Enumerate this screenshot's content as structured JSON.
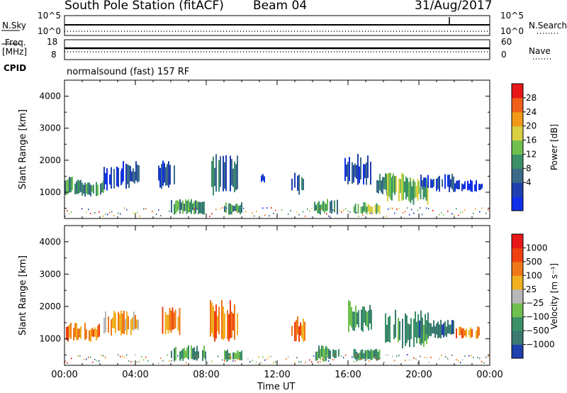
{
  "header": {
    "station": "South Pole Station (fitACF)",
    "beam": "Beam 04",
    "date": "31/Aug/2017"
  },
  "strips": {
    "nsky_label": "N.Sky",
    "nsearch_label": "N.Search",
    "nsky_ticks": [
      "10^5",
      "10^0"
    ],
    "nsearch_ticks": [
      "10^5",
      "10^0"
    ],
    "freq_label": "Freq.",
    "freq_unit": "[MHz]",
    "freq_ticks": [
      "18",
      "8"
    ],
    "nave_label": "Nave",
    "nave_ticks": [
      "60",
      "0"
    ],
    "cpid_label": "CPID",
    "cpid_text": "normalsound (fast) 157 RF"
  },
  "chart_data": [
    {
      "type": "heatmap",
      "name": "power",
      "ylabel": "Slant Range [km]",
      "ylim": [
        180,
        4500
      ],
      "yticks": [
        "4000",
        "3000",
        "2000",
        "1000"
      ],
      "xlim_hours": [
        0,
        24
      ],
      "colorbar": {
        "label": "Power [dB]",
        "ticks": [
          "28",
          "24",
          "20",
          "16",
          "12",
          "8",
          "4"
        ],
        "colors": [
          "#1030e8",
          "#2040b0",
          "#3a6a88",
          "#3c9068",
          "#70c050",
          "#d8d040",
          "#f09a18",
          "#f06018",
          "#e81818"
        ]
      },
      "patches": [
        {
          "t": [
            0.0,
            0.8
          ],
          "r": [
            900,
            1500
          ],
          "v": 3
        },
        {
          "t": [
            0.8,
            2.2
          ],
          "r": [
            850,
            1400
          ],
          "v": 3
        },
        {
          "t": [
            2.2,
            3.2
          ],
          "r": [
            1050,
            1800
          ],
          "v": 1
        },
        {
          "t": [
            3.2,
            4.2
          ],
          "r": [
            1100,
            2000
          ],
          "v": 1
        },
        {
          "t": [
            5.2,
            6.3
          ],
          "r": [
            1100,
            2000
          ],
          "v": 1
        },
        {
          "t": [
            6.0,
            8.0
          ],
          "r": [
            300,
            800
          ],
          "v": 3
        },
        {
          "t": [
            8.2,
            9.8
          ],
          "r": [
            900,
            2200
          ],
          "v": 2
        },
        {
          "t": [
            9.0,
            10.0
          ],
          "r": [
            300,
            700
          ],
          "v": 3
        },
        {
          "t": [
            11.0,
            11.4
          ],
          "r": [
            1300,
            1600
          ],
          "v": 1
        },
        {
          "t": [
            12.8,
            13.6
          ],
          "r": [
            900,
            1700
          ],
          "v": 2
        },
        {
          "t": [
            14.0,
            15.5
          ],
          "r": [
            300,
            800
          ],
          "v": 3
        },
        {
          "t": [
            15.8,
            17.3
          ],
          "r": [
            1200,
            2200
          ],
          "v": 1
        },
        {
          "t": [
            16.3,
            17.8
          ],
          "r": [
            300,
            700
          ],
          "v": 4
        },
        {
          "t": [
            17.6,
            18.5
          ],
          "r": [
            900,
            1600
          ],
          "v": 2
        },
        {
          "t": [
            18.2,
            20.0
          ],
          "r": [
            700,
            1700
          ],
          "v": 4
        },
        {
          "t": [
            19.5,
            20.5
          ],
          "r": [
            600,
            1500
          ],
          "v": 4
        },
        {
          "t": [
            20.0,
            22.0
          ],
          "r": [
            1000,
            1600
          ],
          "v": 1
        },
        {
          "t": [
            22.0,
            23.6
          ],
          "r": [
            1000,
            1400
          ],
          "v": 0
        }
      ]
    },
    {
      "type": "heatmap",
      "name": "velocity",
      "ylabel": "Slant Range [km]",
      "ylim": [
        180,
        4500
      ],
      "yticks": [
        "4000",
        "3000",
        "2000",
        "1000"
      ],
      "xlim_hours": [
        0,
        24
      ],
      "xticks": [
        "00:00",
        "04:00",
        "08:00",
        "12:00",
        "16:00",
        "20:00",
        "00:00"
      ],
      "xlabel": "Time UT",
      "colorbar": {
        "label": "Velocity [m s⁻¹]",
        "ticks": [
          "1000",
          "500",
          "100",
          "25",
          "−25",
          "−100",
          "−500",
          "−1000"
        ],
        "colors": [
          "#2040b0",
          "#3a7a70",
          "#3c9068",
          "#70c050",
          "#b8b8b8",
          "#f0b020",
          "#f07818",
          "#f04010",
          "#e81818"
        ]
      },
      "patches": [
        {
          "t": [
            0.0,
            2.0
          ],
          "r": [
            900,
            1500
          ],
          "v": 6
        },
        {
          "t": [
            2.2,
            4.2
          ],
          "r": [
            1100,
            1900
          ],
          "v": 5
        },
        {
          "t": [
            5.5,
            6.5
          ],
          "r": [
            1100,
            2000
          ],
          "v": 6
        },
        {
          "t": [
            6.0,
            8.0
          ],
          "r": [
            300,
            800
          ],
          "v": 2
        },
        {
          "t": [
            8.2,
            9.8
          ],
          "r": [
            900,
            2200
          ],
          "v": 6
        },
        {
          "t": [
            9.0,
            10.0
          ],
          "r": [
            300,
            700
          ],
          "v": 2
        },
        {
          "t": [
            12.8,
            13.6
          ],
          "r": [
            900,
            1700
          ],
          "v": 6
        },
        {
          "t": [
            14.0,
            15.5
          ],
          "r": [
            300,
            800
          ],
          "v": 2
        },
        {
          "t": [
            16.0,
            17.3
          ],
          "r": [
            1200,
            2200
          ],
          "v": 2
        },
        {
          "t": [
            16.3,
            17.8
          ],
          "r": [
            300,
            700
          ],
          "v": 2
        },
        {
          "t": [
            18.0,
            20.5
          ],
          "r": [
            700,
            1900
          ],
          "v": 2
        },
        {
          "t": [
            20.0,
            22.0
          ],
          "r": [
            1000,
            1600
          ],
          "v": 1
        },
        {
          "t": [
            22.0,
            23.5
          ],
          "r": [
            1000,
            1400
          ],
          "v": 6
        }
      ]
    }
  ]
}
